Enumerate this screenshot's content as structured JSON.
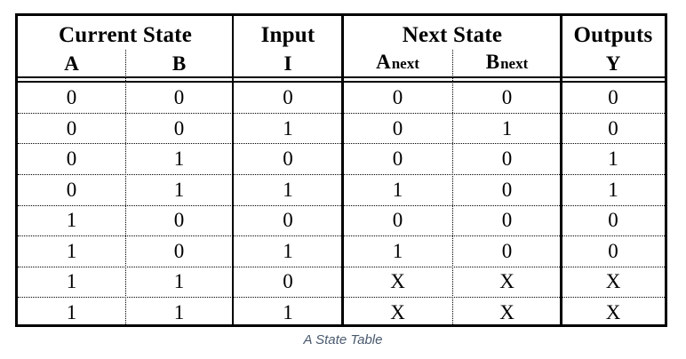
{
  "table": {
    "groups": {
      "current_state": "Current State",
      "input": "Input",
      "next_state": "Next State",
      "outputs": "Outputs"
    },
    "columns": {
      "a": "A",
      "b": "B",
      "i": "I",
      "a_next_main": "A",
      "a_next_sub": "next",
      "b_next_main": "B",
      "b_next_sub": "next",
      "y": "Y"
    },
    "rows": [
      [
        "0",
        "0",
        "0",
        "0",
        "0",
        "0"
      ],
      [
        "0",
        "0",
        "1",
        "0",
        "1",
        "0"
      ],
      [
        "0",
        "1",
        "0",
        "0",
        "0",
        "1"
      ],
      [
        "0",
        "1",
        "1",
        "1",
        "0",
        "1"
      ],
      [
        "1",
        "0",
        "0",
        "0",
        "0",
        "0"
      ],
      [
        "1",
        "0",
        "1",
        "1",
        "0",
        "0"
      ],
      [
        "1",
        "1",
        "0",
        "X",
        "X",
        "X"
      ],
      [
        "1",
        "1",
        "1",
        "X",
        "X",
        "X"
      ]
    ]
  },
  "caption": "A State Table"
}
